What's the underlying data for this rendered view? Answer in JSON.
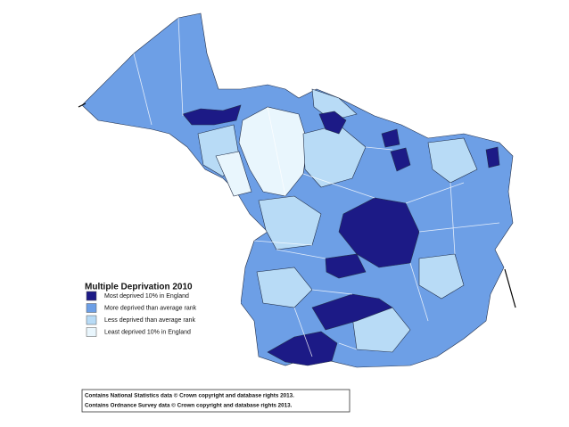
{
  "legend": {
    "title": "Multiple Deprivation 2010",
    "items": [
      {
        "label": "Most deprived 10% in England",
        "color": "#1c1a86"
      },
      {
        "label": "More deprived than average rank",
        "color": "#6d9fe6"
      },
      {
        "label": "Less deprived than average rank",
        "color": "#b8dbf6"
      },
      {
        "label": "Least deprived 10% in England",
        "color": "#e9f6fd"
      }
    ]
  },
  "attribution": [
    "Contains National Statistics data © Crown copyright and database rights 2013.",
    "Contains Ordnance Survey data © Crown copyright and database rights 2013."
  ]
}
